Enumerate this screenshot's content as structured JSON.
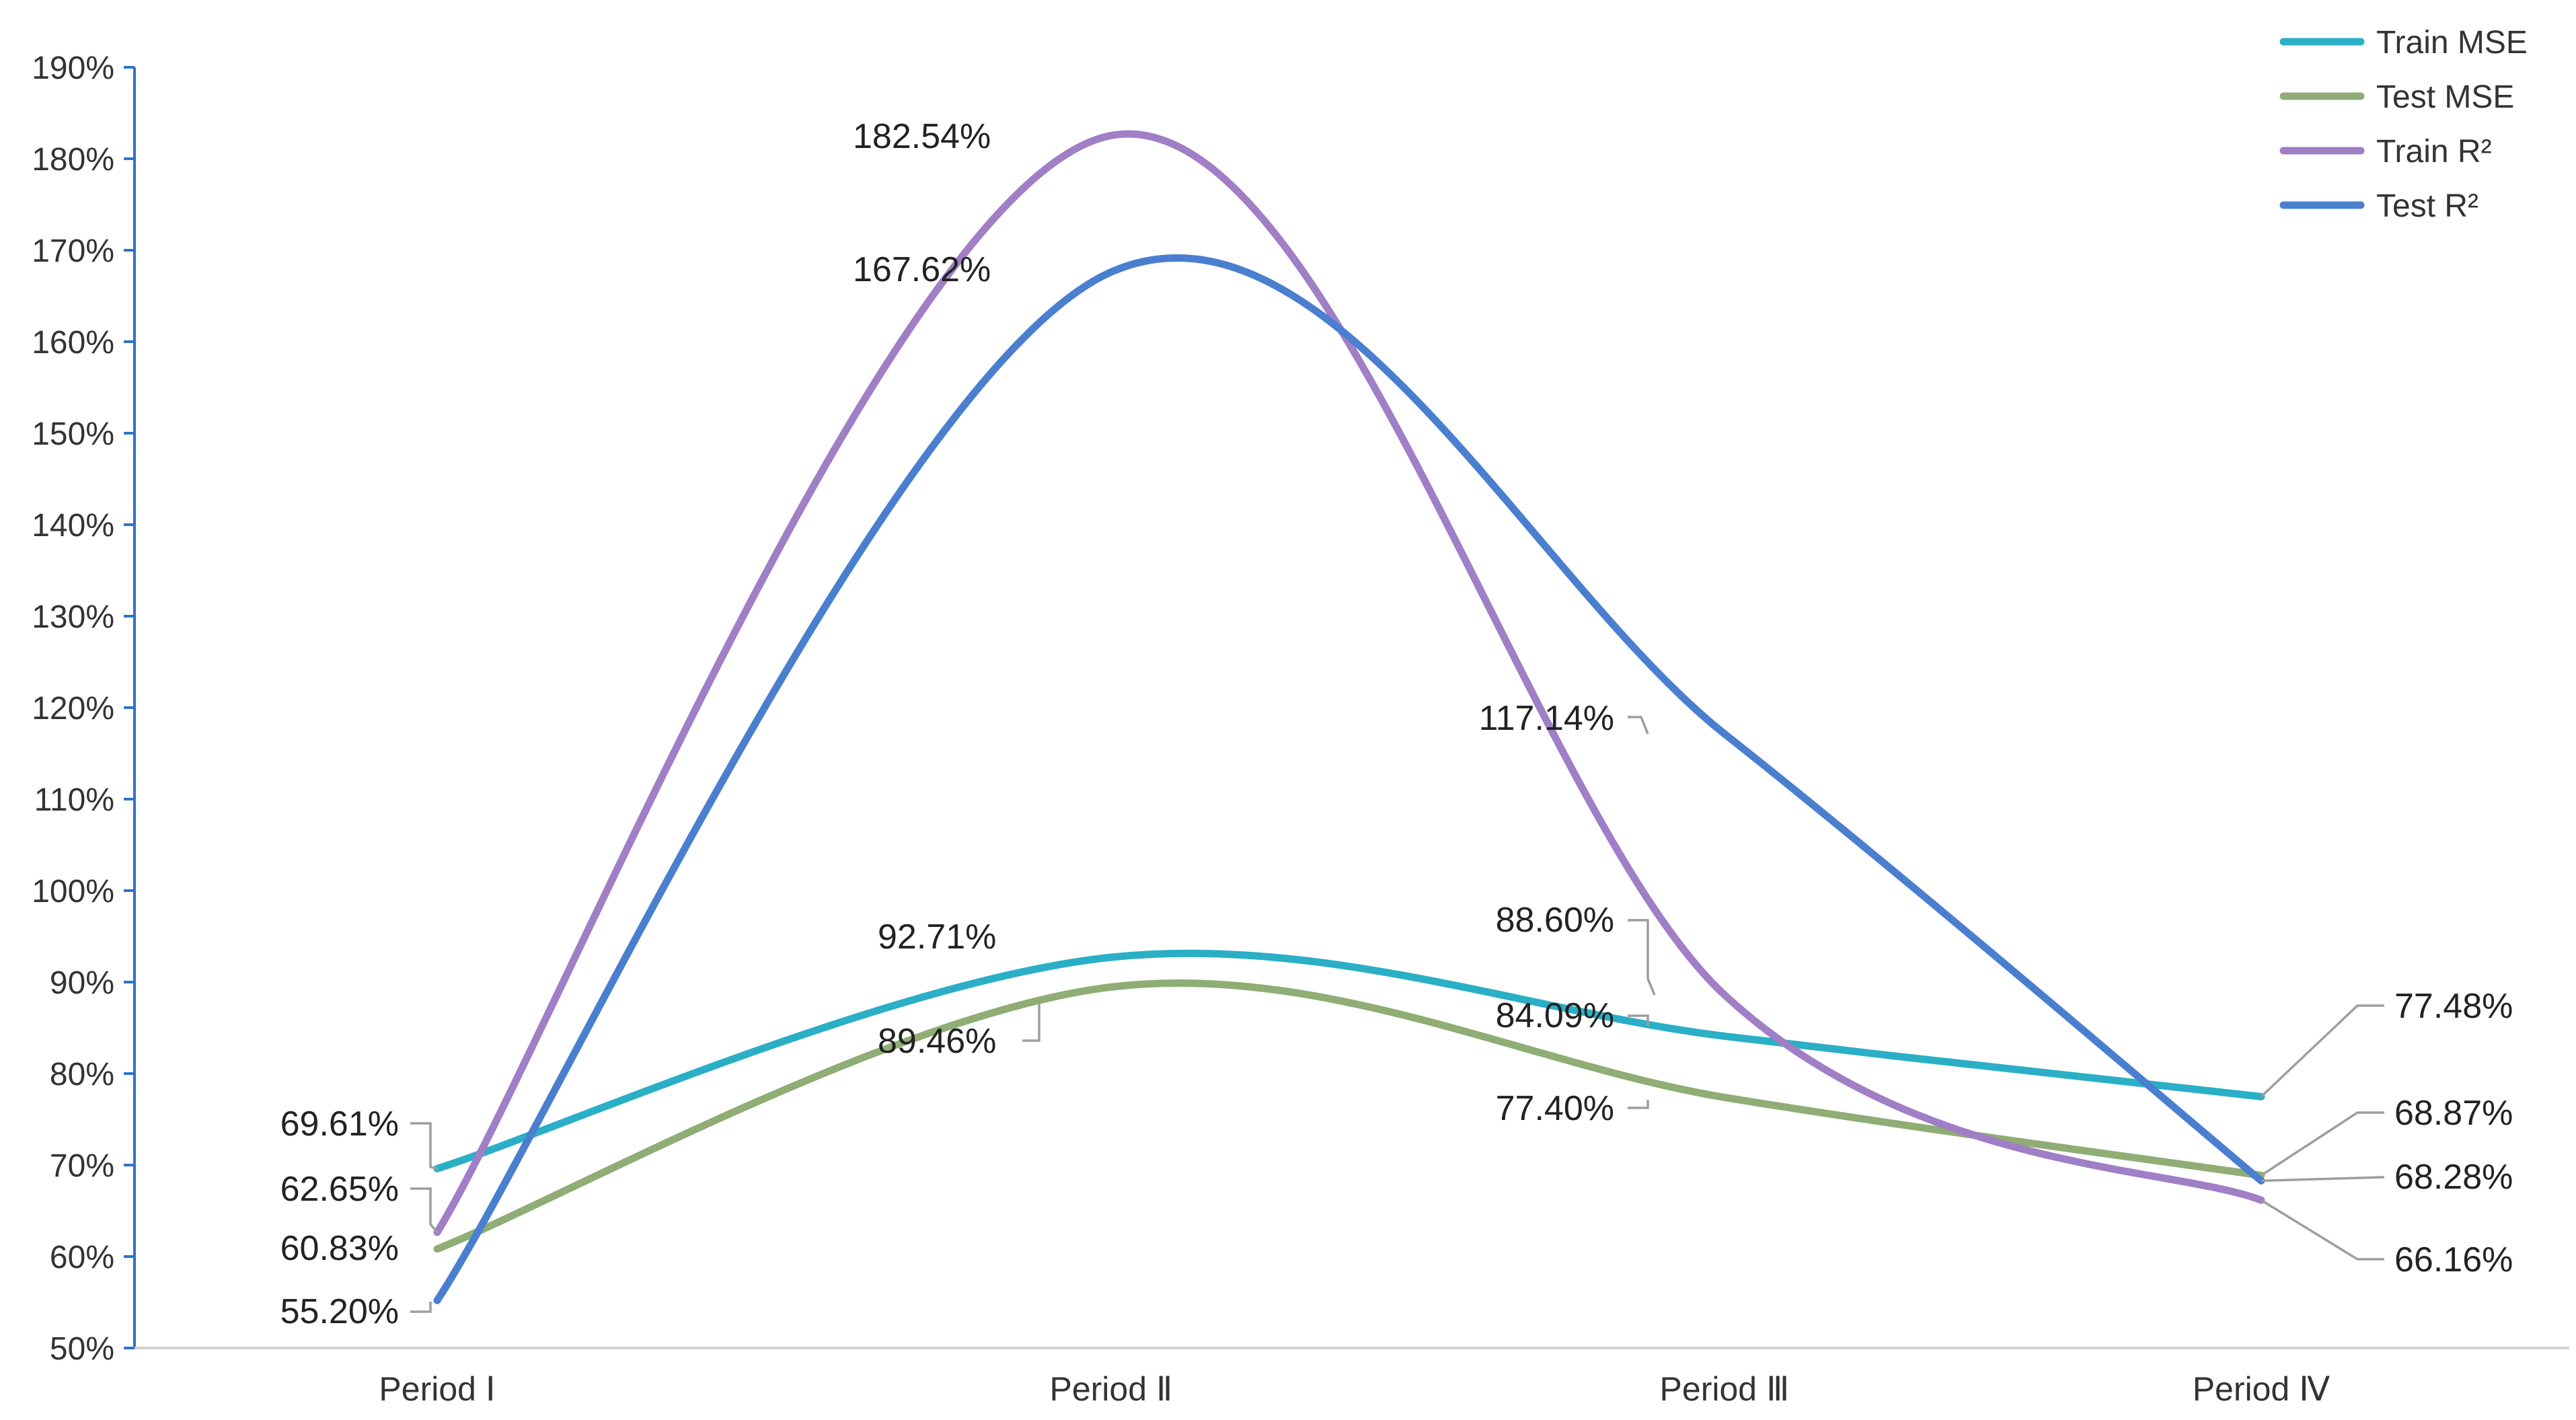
{
  "chart_data": {
    "type": "line",
    "categories": [
      "Period Ⅰ",
      "Period Ⅱ",
      "Period Ⅲ",
      "Period Ⅳ"
    ],
    "y_tick_labels": [
      "50%",
      "60%",
      "70%",
      "80%",
      "90%",
      "100%",
      "110%",
      "120%",
      "130%",
      "140%",
      "150%",
      "160%",
      "170%",
      "180%",
      "190%"
    ],
    "ylim": [
      50,
      190
    ],
    "y_unit": "%",
    "grid": false,
    "smooth": true,
    "legend_position": "top-right",
    "series": [
      {
        "name": "Train MSE",
        "color": "#2aafc6",
        "values": [
          69.61,
          92.71,
          84.09,
          77.48
        ],
        "labels": [
          "69.61%",
          "92.71%",
          "84.09%",
          "77.48%"
        ]
      },
      {
        "name": "Test MSE",
        "color": "#8fad74",
        "values": [
          60.83,
          89.46,
          77.4,
          68.87
        ],
        "labels": [
          "60.83%",
          "89.46%",
          "77.40%",
          "68.87%"
        ]
      },
      {
        "name": "Train R²",
        "color": "#a07fc6",
        "values": [
          62.65,
          182.54,
          88.6,
          66.16
        ],
        "labels": [
          "62.65%",
          "182.54%",
          "88.60%",
          "66.16%"
        ]
      },
      {
        "name": "Test R²",
        "color": "#4a7fd0",
        "values": [
          55.2,
          167.62,
          117.14,
          68.28
        ],
        "labels": [
          "55.20%",
          "167.62%",
          "117.14%",
          "68.28%"
        ]
      }
    ]
  }
}
